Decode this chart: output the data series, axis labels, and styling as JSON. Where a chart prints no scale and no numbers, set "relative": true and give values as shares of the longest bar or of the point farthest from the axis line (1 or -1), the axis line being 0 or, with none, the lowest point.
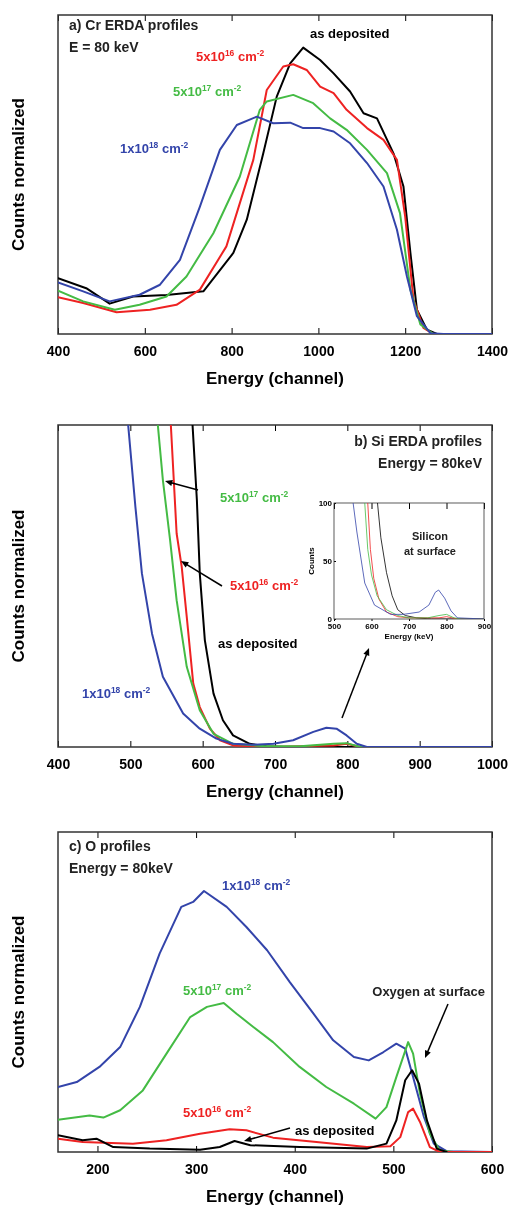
{
  "chart_data": [
    {
      "type": "line",
      "title": "a) Cr ERDA profiles",
      "subtitle": "E = 80 keV",
      "xlabel": "Energy (channel)",
      "ylabel": "Counts normalized",
      "relative": true,
      "xlim": [
        400,
        1400
      ],
      "xticks": [
        400,
        600,
        800,
        1000,
        1200,
        1400
      ],
      "series": [
        {
          "name": "as deposited",
          "color": "#000000",
          "x": [
            400,
            465,
            519,
            573,
            650,
            735,
            804,
            835,
            873,
            904,
            935,
            965,
            1004,
            1035,
            1073,
            1104,
            1135,
            1173,
            1196,
            1212,
            1227,
            1250,
            1273,
            1400
          ],
          "values": [
            0.195,
            0.16,
            0.106,
            0.131,
            0.136,
            0.149,
            0.283,
            0.399,
            0.631,
            0.829,
            0.945,
            1.0,
            0.957,
            0.91,
            0.847,
            0.771,
            0.753,
            0.631,
            0.515,
            0.283,
            0.085,
            0.015,
            0,
            0
          ]
        },
        {
          "name": "5x10$^{16}$ cm$^{-2}$",
          "color": "#ee2222",
          "x": [
            400,
            458,
            535,
            612,
            673,
            727,
            788,
            850,
            881,
            919,
            942,
            973,
            1004,
            1035,
            1065,
            1112,
            1150,
            1181,
            1200,
            1219,
            1242,
            1265,
            1400
          ],
          "values": [
            0.128,
            0.108,
            0.076,
            0.085,
            0.102,
            0.155,
            0.306,
            0.608,
            0.852,
            0.934,
            0.942,
            0.922,
            0.864,
            0.841,
            0.783,
            0.719,
            0.678,
            0.608,
            0.41,
            0.12,
            0.021,
            0,
            0
          ]
        },
        {
          "name": "5x10$^{17}$ cm$^{-2}$",
          "color": "#44bb44",
          "x": [
            400,
            458,
            531,
            588,
            650,
            696,
            758,
            819,
            865,
            881,
            942,
            988,
            1027,
            1065,
            1112,
            1158,
            1188,
            1212,
            1235,
            1265,
            1400
          ],
          "values": [
            0.151,
            0.114,
            0.085,
            0.102,
            0.131,
            0.201,
            0.352,
            0.55,
            0.783,
            0.812,
            0.835,
            0.806,
            0.753,
            0.713,
            0.643,
            0.562,
            0.422,
            0.155,
            0.033,
            0,
            0
          ]
        },
        {
          "name": "1x10$^{18}$ cm$^{-2}$",
          "color": "#3344aa",
          "x": [
            400,
            458,
            519,
            588,
            635,
            681,
            727,
            773,
            812,
            858,
            896,
            935,
            965,
            1004,
            1035,
            1073,
            1112,
            1150,
            1181,
            1204,
            1227,
            1258,
            1288,
            1400
          ],
          "values": [
            0.18,
            0.149,
            0.114,
            0.137,
            0.172,
            0.259,
            0.445,
            0.643,
            0.73,
            0.759,
            0.736,
            0.738,
            0.719,
            0.719,
            0.707,
            0.666,
            0.597,
            0.515,
            0.364,
            0.201,
            0.062,
            0.003,
            0,
            0
          ]
        }
      ]
    },
    {
      "type": "line",
      "title": "b) Si ERDA profiles",
      "subtitle": "Energy = 80keV",
      "xlabel": "Energy (channel)",
      "ylabel": "Counts normalized",
      "relative": true,
      "xlim": [
        400,
        1000
      ],
      "xticks": [
        400,
        500,
        600,
        700,
        800,
        900,
        1000
      ],
      "series": [
        {
          "name": "as deposited",
          "color": "#000000",
          "x": [
            586,
            592,
            596,
            603,
            615,
            628,
            642,
            665,
            688,
            712,
            827,
            1000
          ],
          "values": [
            1,
            0.767,
            0.539,
            0.332,
            0.166,
            0.083,
            0.036,
            0.01,
            0.002,
            0,
            0,
            0
          ]
        },
        {
          "name": "5x10$^{16}$ cm$^{-2}$",
          "color": "#ee2222",
          "x": [
            556,
            564,
            571,
            578,
            587,
            596,
            610,
            624,
            642,
            688,
            781,
            799,
            818,
            1000
          ],
          "values": [
            1,
            0.663,
            0.56,
            0.404,
            0.197,
            0.124,
            0.057,
            0.021,
            0.005,
            0,
            0.005,
            0.01,
            0,
            0
          ]
        },
        {
          "name": "5x10$^{17}$ cm$^{-2}$",
          "color": "#44bb44",
          "x": [
            538,
            545,
            555,
            564,
            578,
            596,
            615,
            642,
            688,
            735,
            781,
            799,
            818,
            1000
          ],
          "values": [
            1,
            0.829,
            0.642,
            0.456,
            0.249,
            0.114,
            0.041,
            0.01,
            0.002,
            0.002,
            0.01,
            0.012,
            0,
            0
          ]
        },
        {
          "name": "1x10$^{18}$ cm$^{-2}$",
          "color": "#3344aa",
          "x": [
            497,
            507,
            516,
            530,
            545,
            573,
            596,
            619,
            642,
            670,
            698,
            725,
            753,
            771,
            785,
            799,
            813,
            827,
            1000
          ],
          "values": [
            1,
            0.746,
            0.539,
            0.352,
            0.218,
            0.104,
            0.057,
            0.026,
            0.01,
            0.007,
            0.01,
            0.021,
            0.047,
            0.06,
            0.057,
            0.036,
            0.01,
            0,
            0
          ]
        }
      ]
    },
    {
      "type": "line",
      "xlabel": "Energy (keV)",
      "ylabel": "Counts",
      "annotations": [
        "Silicon at surface"
      ],
      "xlim": [
        500,
        900
      ],
      "xticks": [
        500,
        600,
        700,
        800,
        900
      ],
      "ylim": [
        0,
        100
      ],
      "yticks": [
        0,
        50,
        100
      ],
      "series": [
        {
          "color": "#000000",
          "x": [
            616,
            625,
            640,
            655,
            670,
            690,
            720,
            760,
            900
          ],
          "values": [
            100,
            70,
            40,
            20,
            8,
            3,
            1,
            0,
            0
          ]
        },
        {
          "color": "#ee2222",
          "x": [
            590,
            597,
            606,
            620,
            640,
            670,
            700,
            780,
            800,
            815,
            830,
            900
          ],
          "values": [
            100,
            60,
            35,
            17,
            6,
            2,
            1,
            1,
            2,
            1,
            0,
            0
          ]
        },
        {
          "color": "#44bb44",
          "x": [
            582,
            590,
            600,
            615,
            640,
            670,
            700,
            750,
            780,
            800,
            820,
            840,
            900
          ],
          "values": [
            100,
            60,
            38,
            20,
            8,
            3,
            1,
            1,
            3,
            4,
            1,
            0,
            0
          ]
        },
        {
          "color": "#3344aa",
          "x": [
            551,
            561,
            582,
            608,
            651,
            685,
            727,
            753,
            770,
            779,
            795,
            812,
            829,
            900
          ],
          "values": [
            100,
            75,
            31,
            12,
            4,
            4,
            6,
            12,
            23,
            25,
            18,
            7,
            1,
            0
          ]
        }
      ]
    },
    {
      "type": "line",
      "title": "c) O profiles",
      "subtitle": "Energy = 80keV",
      "xlabel": "Energy (channel)",
      "ylabel": "Counts normalized",
      "annotations": [
        "Oxygen at surface"
      ],
      "relative": true,
      "xlim": [
        160,
        600
      ],
      "xticks": [
        200,
        300,
        400,
        500,
        600
      ],
      "series": [
        {
          "name": "1x10$^{18}$ cm$^{-2}$",
          "color": "#3344aa",
          "x": [
            160,
            179,
            202,
            223,
            243,
            263,
            285,
            297,
            308,
            331,
            351,
            372,
            395,
            419,
            439,
            460,
            475,
            490,
            503,
            512,
            520,
            531,
            541,
            554,
            600
          ],
          "values": [
            0.249,
            0.268,
            0.326,
            0.402,
            0.556,
            0.76,
            0.939,
            0.958,
            1.0,
            0.939,
            0.862,
            0.773,
            0.651,
            0.53,
            0.428,
            0.364,
            0.351,
            0.383,
            0.415,
            0.396,
            0.287,
            0.134,
            0.032,
            0.003,
            0
          ]
        },
        {
          "name": "5x10$^{17}$ cm$^{-2}$",
          "color": "#44bb44",
          "x": [
            160,
            192,
            206,
            223,
            246,
            270,
            294,
            311,
            328,
            341,
            358,
            378,
            405,
            432,
            460,
            482,
            493,
            503,
            515,
            520,
            527,
            537,
            547,
            561
          ],
          "values": [
            0.124,
            0.14,
            0.132,
            0.16,
            0.236,
            0.377,
            0.517,
            0.556,
            0.571,
            0.53,
            0.479,
            0.421,
            0.326,
            0.249,
            0.185,
            0.128,
            0.172,
            0.287,
            0.421,
            0.377,
            0.223,
            0.07,
            0.006,
            0
          ]
        },
        {
          "name": "5x10$^{16}$ cm$^{-2}$",
          "color": "#ee2222",
          "x": [
            160,
            185,
            236,
            270,
            304,
            334,
            351,
            378,
            422,
            473,
            497,
            507,
            515,
            520,
            527,
            537,
            547,
            600
          ],
          "values": [
            0.051,
            0.038,
            0.032,
            0.045,
            0.07,
            0.087,
            0.083,
            0.055,
            0.038,
            0.019,
            0.022,
            0.057,
            0.153,
            0.166,
            0.115,
            0.019,
            0,
            0
          ]
        },
        {
          "name": "as deposited",
          "color": "#000000",
          "x": [
            160,
            185,
            199,
            216,
            253,
            304,
            324,
            339,
            355,
            405,
            473,
            493,
            503,
            512,
            519,
            526,
            534,
            544,
            554
          ],
          "values": [
            0.064,
            0.045,
            0.051,
            0.019,
            0.013,
            0.009,
            0.019,
            0.042,
            0.026,
            0.019,
            0.013,
            0.032,
            0.121,
            0.275,
            0.313,
            0.262,
            0.121,
            0.013,
            0
          ]
        }
      ]
    }
  ]
}
